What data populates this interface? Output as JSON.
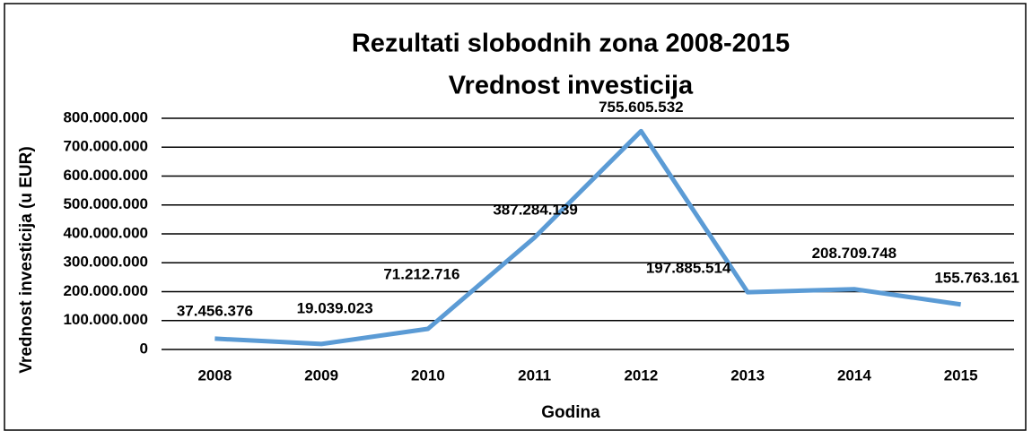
{
  "chart_data": {
    "type": "line",
    "title": [
      "Rezultati slobodnih zona 2008-2015",
      "Vrednost investicija"
    ],
    "x_label": "Godina",
    "y_label": "Vrednost investicija (u EUR)",
    "categories": [
      "2008",
      "2009",
      "2010",
      "2011",
      "2012",
      "2013",
      "2014",
      "2015"
    ],
    "series": [
      {
        "name": "Vrednost investicija",
        "color": "#5b9bd5",
        "values": [
          37456376,
          19039023,
          71212716,
          387284139,
          755605532,
          197885514,
          208709748,
          155763161
        ],
        "value_labels": [
          "37.456.376",
          "19.039.023",
          "71.212.716",
          "387.284.139",
          "755.605.532",
          "197.885.514",
          "208.709.748",
          "155.763.161"
        ]
      }
    ],
    "ylim": [
      0,
      800000000
    ],
    "yticks": [
      0,
      {
        "value": 100000000,
        "label": "100.000.000"
      },
      {
        "value": 200000000,
        "label": "200.000.000"
      },
      {
        "value": 300000000,
        "label": "300.000.000"
      },
      {
        "value": 400000000,
        "label": "400.000.000"
      },
      {
        "value": 500000000,
        "label": "500.000.000"
      },
      {
        "value": 600000000,
        "label": "600.000.000"
      },
      {
        "value": 700000000,
        "label": "700.000.000"
      },
      {
        "value": 800000000,
        "label": "800.000.000"
      }
    ],
    "grid": true
  }
}
